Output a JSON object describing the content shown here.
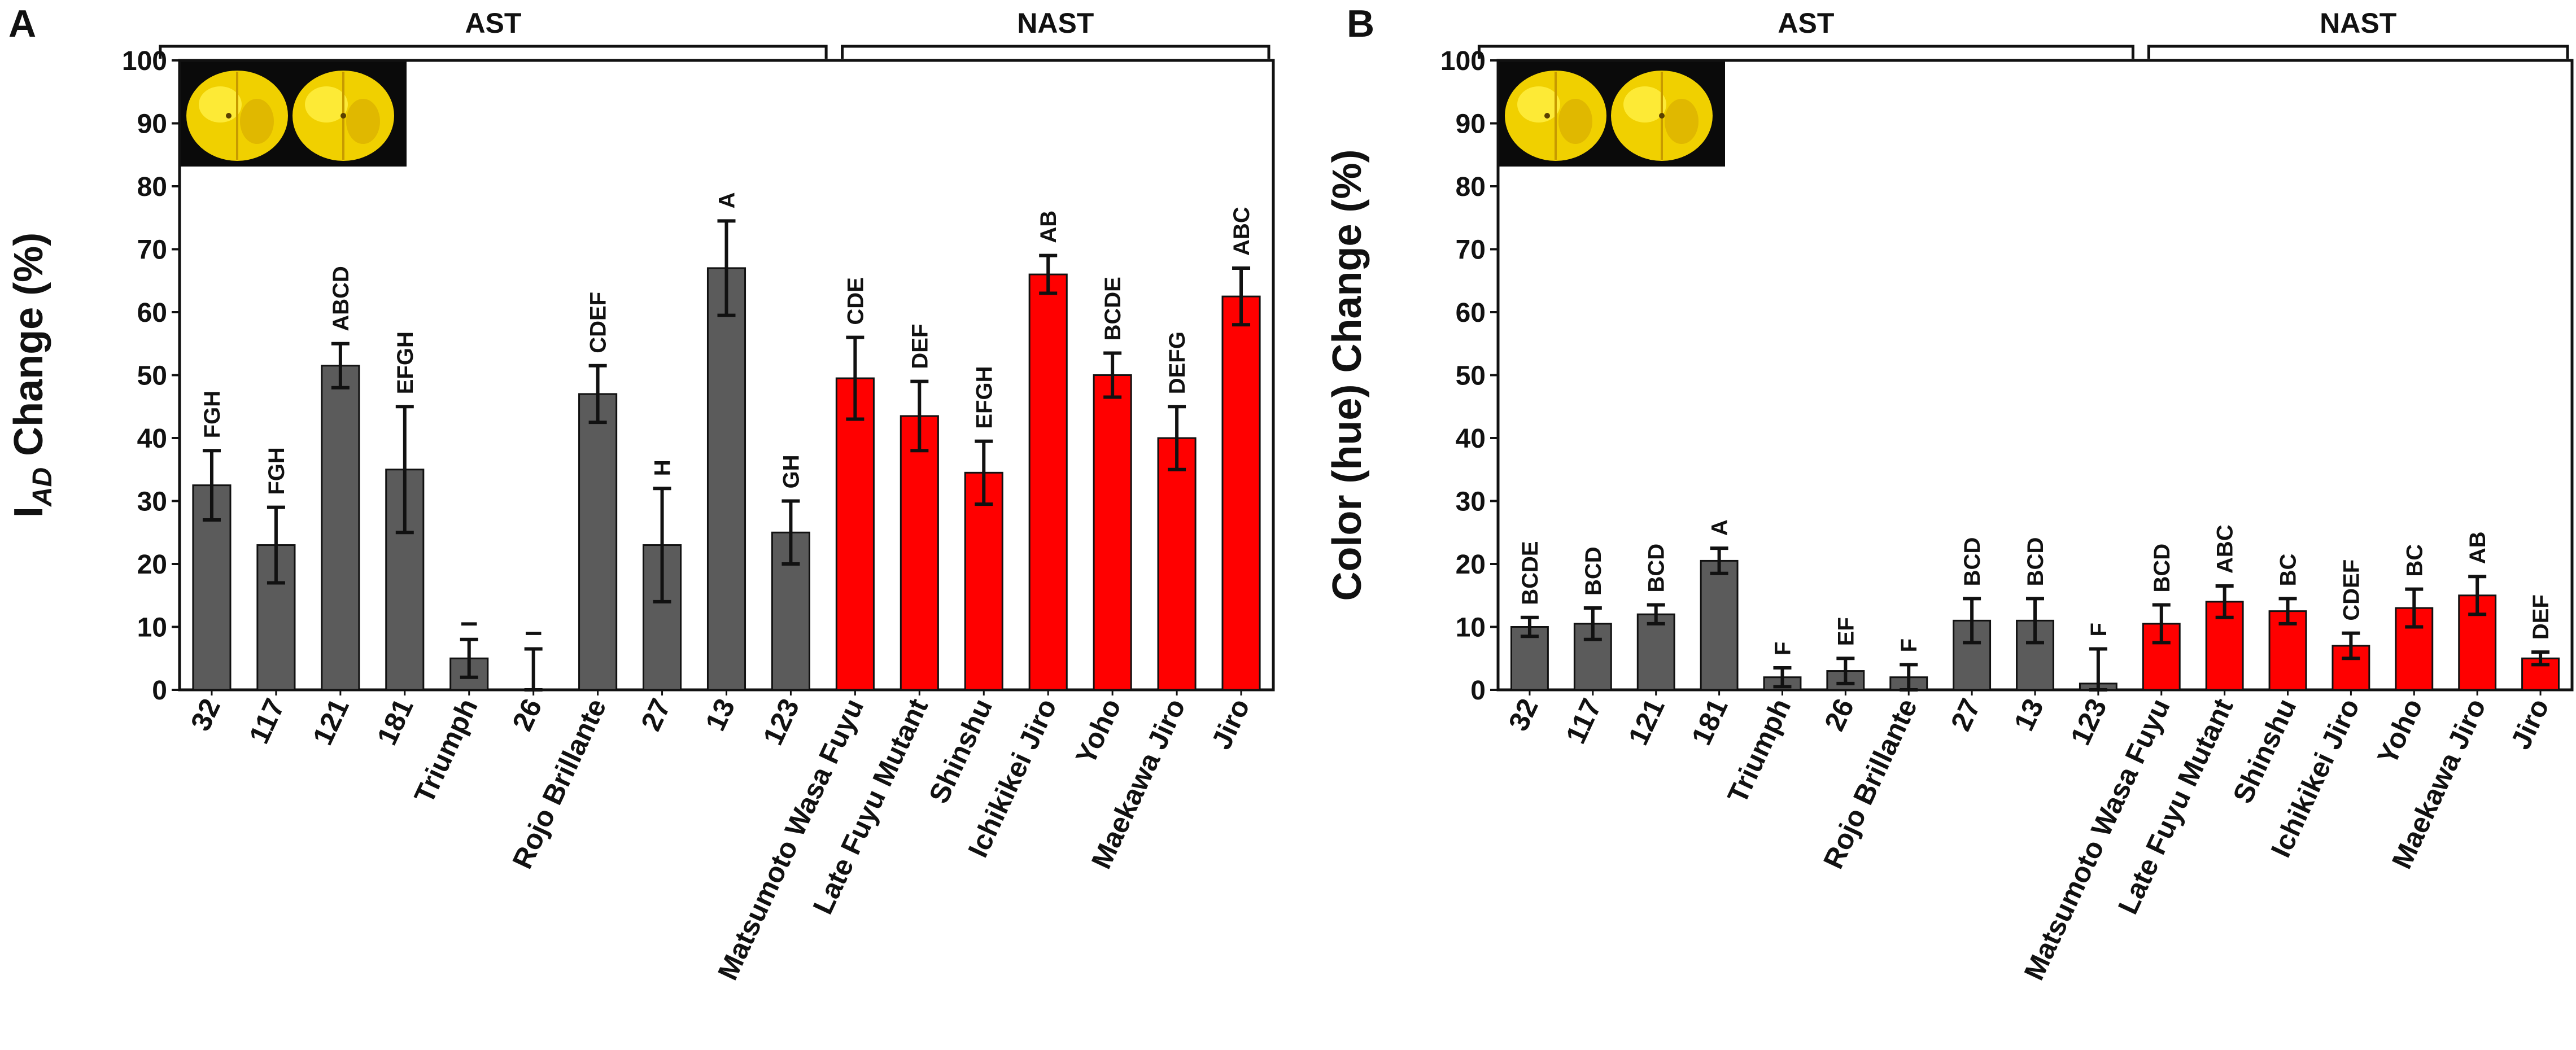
{
  "chart_data": [
    {
      "type": "bar",
      "panel_label": "A",
      "ylabel_main": "I",
      "ylabel_sub": "AD",
      "ylabel_rest": " Change (%)",
      "ylim": [
        0,
        100
      ],
      "yticks": [
        "0",
        "10",
        "20",
        "30",
        "40",
        "50",
        "60",
        "70",
        "80",
        "90",
        "100"
      ],
      "groups": [
        {
          "label": "AST",
          "first": 0,
          "last": 9
        },
        {
          "label": "NAST",
          "first": 10,
          "last": 16
        }
      ],
      "categories": [
        "32",
        "117",
        "121",
        "181",
        "Triumph",
        "26",
        "Rojo Brillante",
        "27",
        "13",
        "123",
        "Matsumoto Wasa Fuyu",
        "Late Fuyu Mutant",
        "Shinshu",
        "Ichikikei Jiro",
        "Yoho",
        "Maekawa Jiro",
        "Jiro"
      ],
      "values": [
        32.5,
        23,
        51.5,
        35,
        5,
        0,
        47,
        23,
        67,
        25,
        49.5,
        43.5,
        34.5,
        66,
        50,
        40,
        62.5
      ],
      "errors": [
        5.5,
        6,
        3.5,
        10,
        3,
        6.5,
        4.5,
        9,
        7.5,
        5,
        6.5,
        5.5,
        5,
        3,
        3.5,
        5,
        4.5
      ],
      "letters": [
        "FGH",
        "FGH",
        "ABCD",
        "EFGH",
        "I",
        "I",
        "CDEF",
        "H",
        "A",
        "GH",
        "CDE",
        "DEF",
        "EFGH",
        "AB",
        "BCDE",
        "DEFG",
        "ABC"
      ],
      "colors": [
        "gray",
        "gray",
        "gray",
        "gray",
        "gray",
        "gray",
        "gray",
        "gray",
        "gray",
        "gray",
        "red",
        "red",
        "red",
        "red",
        "red",
        "red",
        "red"
      ]
    },
    {
      "type": "bar",
      "panel_label": "B",
      "ylabel": "Color (hue) Change (%)",
      "ylim": [
        0,
        100
      ],
      "yticks": [
        "0",
        "10",
        "20",
        "30",
        "40",
        "50",
        "60",
        "70",
        "80",
        "90",
        "100"
      ],
      "groups": [
        {
          "label": "AST",
          "first": 0,
          "last": 9
        },
        {
          "label": "NAST",
          "first": 10,
          "last": 16
        }
      ],
      "categories": [
        "32",
        "117",
        "121",
        "181",
        "Triumph",
        "26",
        "Rojo Brillante",
        "27",
        "13",
        "123",
        "Matsumoto Wasa Fuyu",
        "Late Fuyu Mutant",
        "Shinshu",
        "Ichikikei Jiro",
        "Yoho",
        "Maekawa Jiro",
        "Jiro"
      ],
      "values": [
        10,
        10.5,
        12,
        20.5,
        2,
        3,
        2,
        11,
        11,
        1,
        10.5,
        14,
        12.5,
        7,
        13,
        15,
        5
      ],
      "errors": [
        1.5,
        2.5,
        1.5,
        2,
        1.5,
        2,
        2,
        3.5,
        3.5,
        5.5,
        3,
        2.5,
        2,
        2,
        3,
        3,
        1
      ],
      "letters": [
        "BCDE",
        "BCD",
        "BCD",
        "A",
        "F",
        "EF",
        "F",
        "BCD",
        "BCD",
        "F",
        "BCD",
        "ABC",
        "BC",
        "CDEF",
        "BC",
        "AB",
        "DEF"
      ],
      "colors": [
        "gray",
        "gray",
        "gray",
        "gray",
        "gray",
        "gray",
        "gray",
        "gray",
        "gray",
        "gray",
        "red",
        "red",
        "red",
        "red",
        "red",
        "red",
        "red"
      ]
    }
  ],
  "palette": {
    "gray": "#5b5b5b",
    "red": "#ff0000",
    "axis": "#111111"
  }
}
